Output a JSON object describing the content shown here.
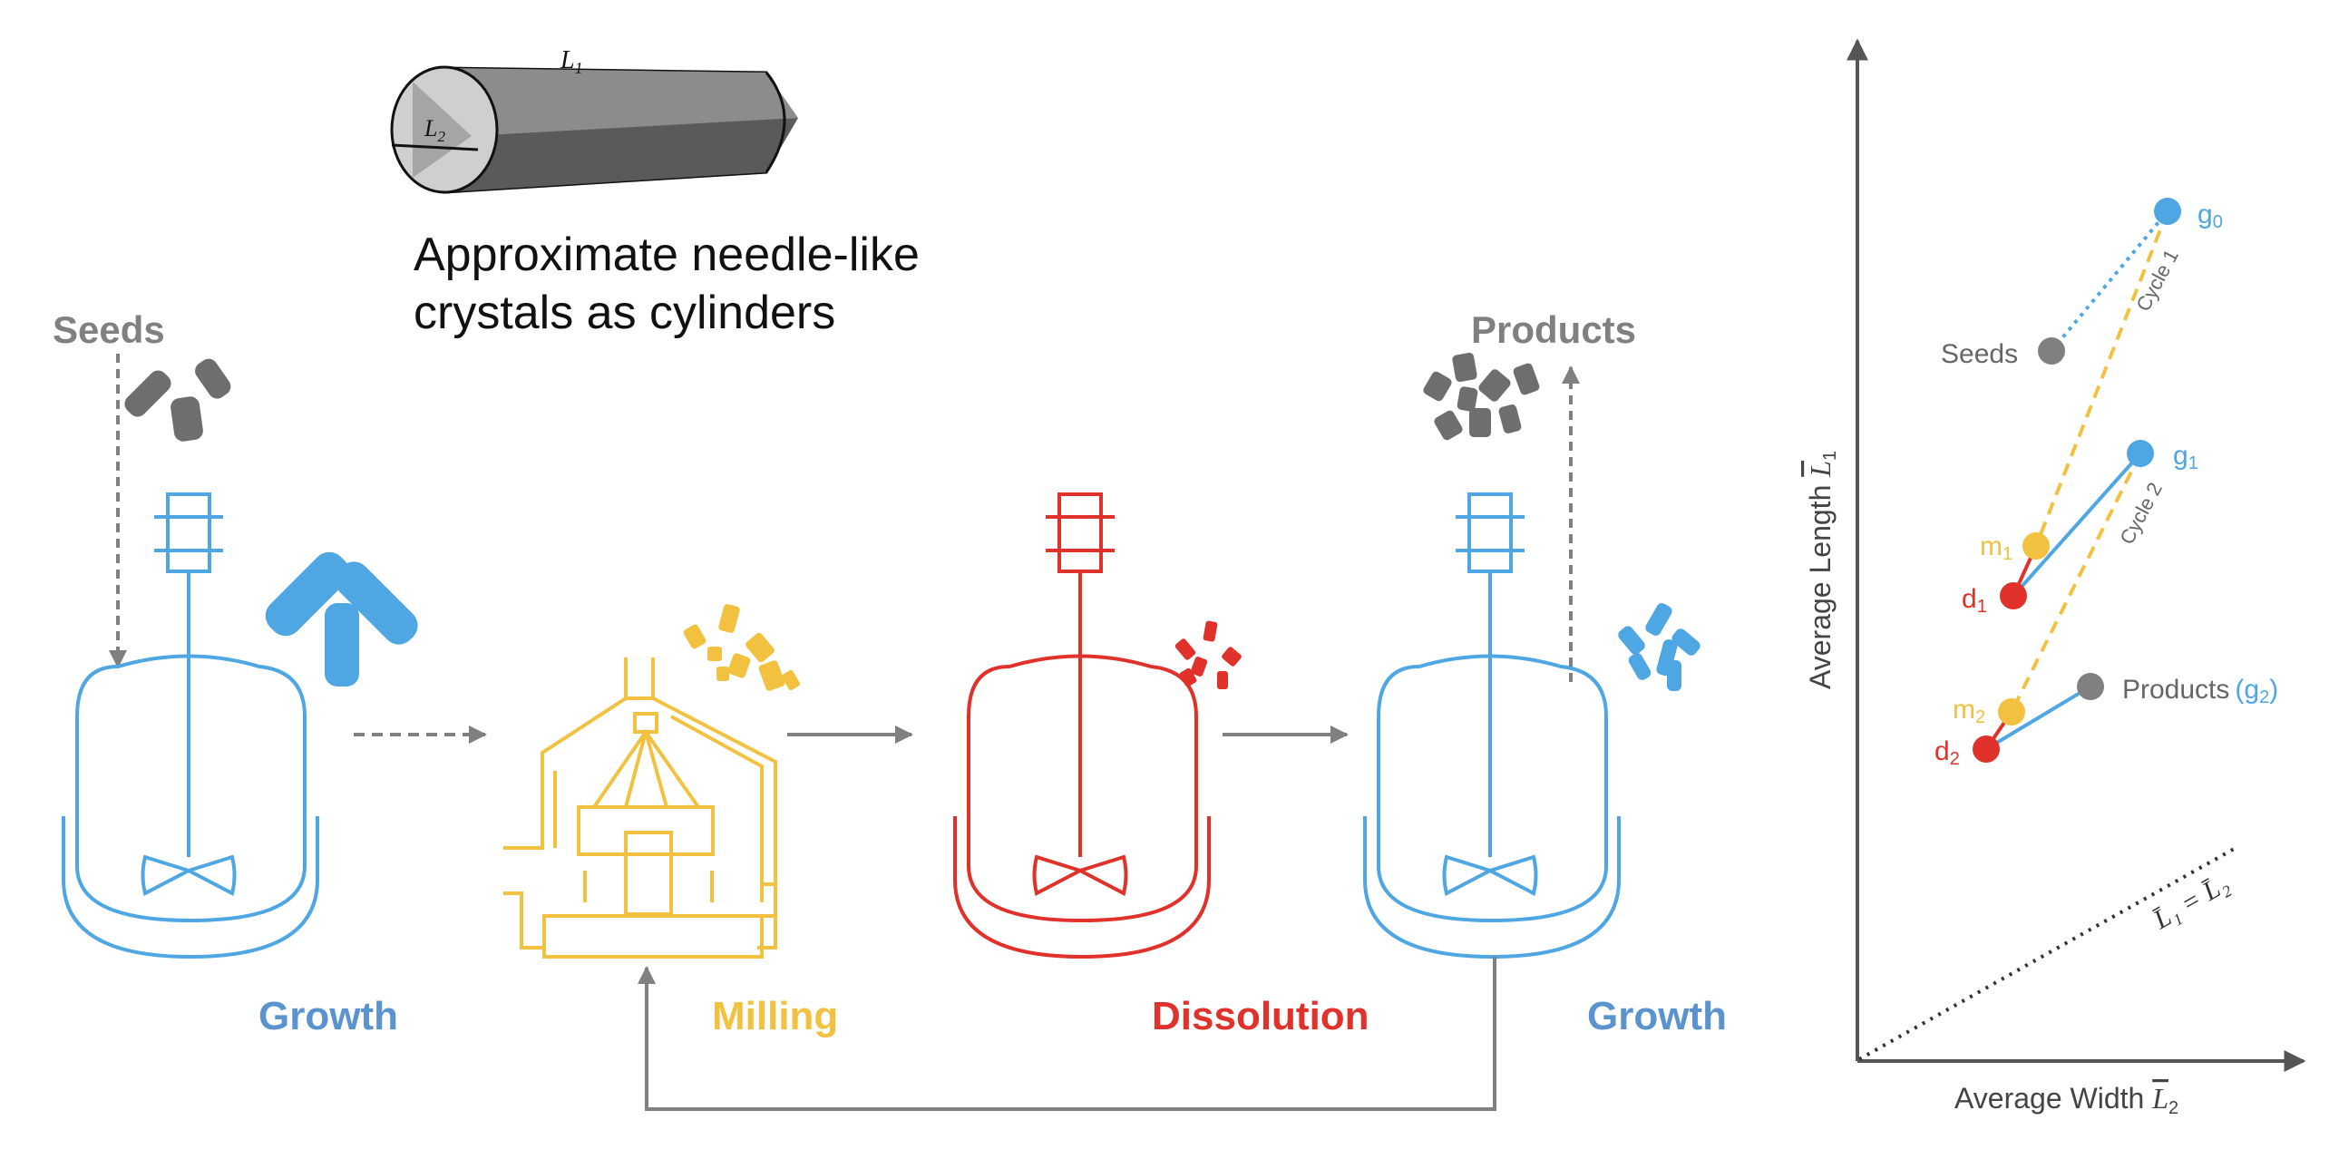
{
  "colors": {
    "blue": "#4ea6e3",
    "yellow": "#f2c140",
    "red": "#e0322a",
    "gray": "#808080",
    "dark": "#222222",
    "stage_blue_text": "#5b93cf",
    "crystal_dark": "#6a6a6a"
  },
  "cylinder": {
    "length_label": "L",
    "length_sub": "1",
    "width_label": "L",
    "width_sub": "2",
    "caption_line1": "Approximate needle-like",
    "caption_line2": "crystals as cylinders"
  },
  "process": {
    "seeds_label": "Seeds",
    "products_label": "Products",
    "stages": [
      {
        "name": "Growth",
        "color": "stage_blue_text"
      },
      {
        "name": "Milling",
        "color": "yellow"
      },
      {
        "name": "Dissolution",
        "color": "red"
      },
      {
        "name": "Growth",
        "color": "stage_blue_text"
      }
    ]
  },
  "chart": {
    "ylabel_prefix": "Average Length ",
    "ylabel_symbol": "L",
    "ylabel_sub": "1",
    "xlabel_prefix": "Average Width ",
    "xlabel_symbol": "L",
    "xlabel_sub": "2",
    "diag_label": "L̄₁ = L̄₂",
    "cycle1_label": "Cycle 1",
    "cycle2_label": "Cycle 2",
    "points": {
      "g0": {
        "label": "g",
        "sub": "0",
        "color": "blue"
      },
      "g1": {
        "label": "g",
        "sub": "1",
        "color": "blue"
      },
      "m1": {
        "label": "m",
        "sub": "1",
        "color": "yellow"
      },
      "d1": {
        "label": "d",
        "sub": "1",
        "color": "red"
      },
      "m2": {
        "label": "m",
        "sub": "2",
        "color": "yellow"
      },
      "d2": {
        "label": "d",
        "sub": "2",
        "color": "red"
      },
      "seeds": {
        "label": "Seeds",
        "color": "gray"
      },
      "products": {
        "label": "Products",
        "paren_open": "(",
        "paren_label": "g",
        "paren_sub": "2",
        "paren_close": ")",
        "color": "gray"
      }
    }
  }
}
